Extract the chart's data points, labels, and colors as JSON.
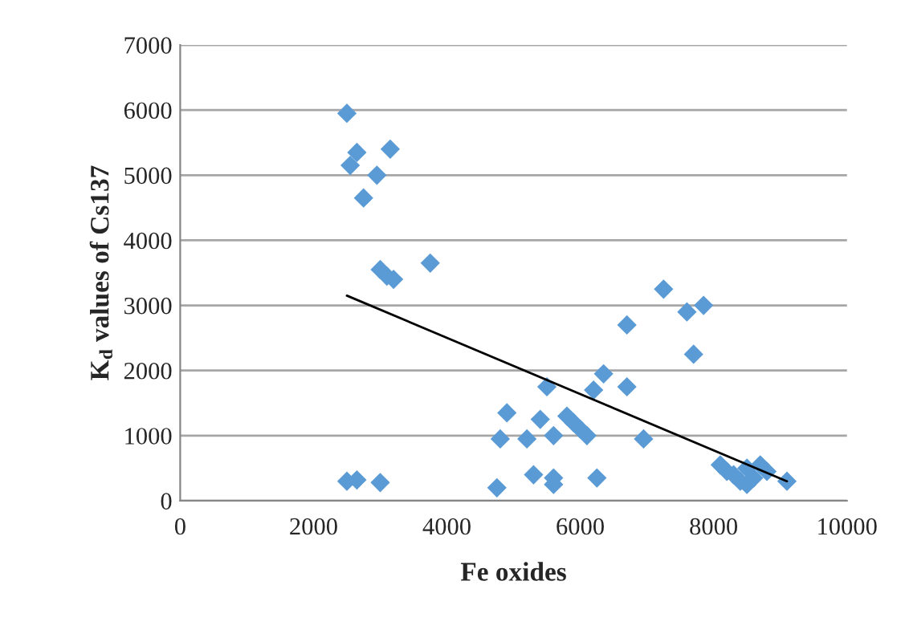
{
  "chart_data": {
    "type": "scatter",
    "xlabel": "Fe oxides",
    "ylabel": "K$_{d}$ values of Cs137",
    "grid": "y",
    "legend": false,
    "xlim": [
      0,
      10000
    ],
    "xticks": [
      0,
      2000,
      4000,
      6000,
      8000,
      10000
    ],
    "ylim": [
      0,
      7000
    ],
    "yticks": [
      0,
      1000,
      2000,
      3000,
      4000,
      5000,
      6000,
      7000
    ],
    "series": [
      {
        "marker": "diamond",
        "color": "#5b9bd5",
        "x": [
          2500,
          2550,
          2650,
          2750,
          2950,
          3150,
          3000,
          3100,
          3200,
          3750,
          2500,
          2650,
          3000,
          4750,
          4800,
          4900,
          5200,
          5300,
          5400,
          5500,
          5600,
          5600,
          5600,
          5800,
          5900,
          6000,
          6100,
          6200,
          6250,
          6350,
          6700,
          6700,
          6950,
          7250,
          7600,
          7700,
          7850,
          8100,
          8200,
          8300,
          8400,
          8500,
          8500,
          8600,
          8700,
          8800,
          9100
        ],
        "values": [
          5950,
          5150,
          5350,
          4650,
          5000,
          5400,
          3550,
          3450,
          3400,
          3650,
          300,
          320,
          280,
          200,
          950,
          1350,
          950,
          400,
          1250,
          1750,
          1000,
          350,
          250,
          1300,
          1200,
          1100,
          1000,
          1700,
          350,
          1950,
          1750,
          2700,
          950,
          3250,
          2900,
          2250,
          3000,
          550,
          450,
          400,
          300,
          250,
          500,
          350,
          550,
          450,
          300
        ]
      },
      {
        "type": "line",
        "color": "#000000",
        "x": [
          2500,
          9100
        ],
        "values": [
          3150,
          300
        ]
      }
    ]
  }
}
